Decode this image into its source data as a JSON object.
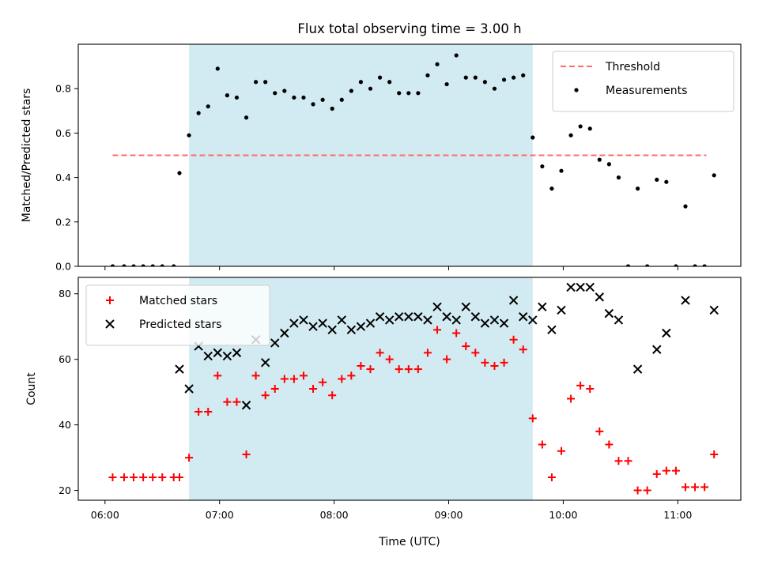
{
  "figure": {
    "title": "Flux total observing time = 3.00 h",
    "xlabel": "Time (UTC)"
  },
  "chart_data": [
    {
      "type": "scatter",
      "ylabel": "Matched/Predicted stars",
      "ylim": [
        0,
        1
      ],
      "yticks": [
        "0.0",
        "0.2",
        "0.4",
        "0.6",
        "0.8"
      ],
      "ytick_values": [
        0,
        0.2,
        0.4,
        0.6,
        0.8
      ],
      "xlim": [
        "05:46",
        "11:33"
      ],
      "xticks": [
        "06:00",
        "07:00",
        "08:00",
        "09:00",
        "10:00",
        "11:00"
      ],
      "shaded_span": {
        "start": "06:44",
        "end": "09:44",
        "color": "#add8e6"
      },
      "legend": {
        "placement": "upper right",
        "entries": [
          "Threshold",
          "Measurements"
        ]
      },
      "series": [
        {
          "name": "Threshold",
          "style": "dashed-line",
          "color": "#ff6b6b",
          "x": [
            "06:04",
            "11:15"
          ],
          "y": [
            0.5,
            0.5
          ]
        },
        {
          "name": "Measurements",
          "style": "dot",
          "color": "#000000",
          "points": [
            [
              "06:04",
              0
            ],
            [
              "06:10",
              0
            ],
            [
              "06:15",
              0
            ],
            [
              "06:20",
              0
            ],
            [
              "06:25",
              0
            ],
            [
              "06:30",
              0
            ],
            [
              "06:36",
              0
            ],
            [
              "06:39",
              0.42
            ],
            [
              "06:44",
              0.59
            ],
            [
              "06:49",
              0.69
            ],
            [
              "06:54",
              0.72
            ],
            [
              "06:59",
              0.89
            ],
            [
              "07:04",
              0.77
            ],
            [
              "07:09",
              0.76
            ],
            [
              "07:14",
              0.67
            ],
            [
              "07:19",
              0.83
            ],
            [
              "07:24",
              0.83
            ],
            [
              "07:29",
              0.78
            ],
            [
              "07:34",
              0.79
            ],
            [
              "07:39",
              0.76
            ],
            [
              "07:44",
              0.76
            ],
            [
              "07:49",
              0.73
            ],
            [
              "07:54",
              0.75
            ],
            [
              "07:59",
              0.71
            ],
            [
              "08:04",
              0.75
            ],
            [
              "08:09",
              0.79
            ],
            [
              "08:14",
              0.83
            ],
            [
              "08:19",
              0.8
            ],
            [
              "08:24",
              0.85
            ],
            [
              "08:29",
              0.83
            ],
            [
              "08:34",
              0.78
            ],
            [
              "08:39",
              0.78
            ],
            [
              "08:44",
              0.78
            ],
            [
              "08:49",
              0.86
            ],
            [
              "08:54",
              0.91
            ],
            [
              "08:59",
              0.82
            ],
            [
              "09:04",
              0.95
            ],
            [
              "09:09",
              0.85
            ],
            [
              "09:14",
              0.85
            ],
            [
              "09:19",
              0.83
            ],
            [
              "09:24",
              0.8
            ],
            [
              "09:29",
              0.84
            ],
            [
              "09:34",
              0.85
            ],
            [
              "09:39",
              0.86
            ],
            [
              "09:44",
              0.58
            ],
            [
              "09:49",
              0.45
            ],
            [
              "09:54",
              0.35
            ],
            [
              "09:59",
              0.43
            ],
            [
              "10:04",
              0.59
            ],
            [
              "10:09",
              0.63
            ],
            [
              "10:14",
              0.62
            ],
            [
              "10:19",
              0.48
            ],
            [
              "10:24",
              0.46
            ],
            [
              "10:29",
              0.4
            ],
            [
              "10:34",
              0
            ],
            [
              "10:39",
              0.35
            ],
            [
              "10:44",
              0
            ],
            [
              "10:49",
              0.39
            ],
            [
              "10:54",
              0.38
            ],
            [
              "10:59",
              0
            ],
            [
              "11:04",
              0.27
            ],
            [
              "11:09",
              0
            ],
            [
              "11:14",
              0
            ],
            [
              "11:19",
              0.41
            ]
          ]
        }
      ]
    },
    {
      "type": "scatter",
      "ylabel": "Count",
      "ylim": [
        17,
        85
      ],
      "yticks": [
        "20",
        "40",
        "60",
        "80"
      ],
      "ytick_values": [
        20,
        40,
        60,
        80
      ],
      "xlim": [
        "05:46",
        "11:33"
      ],
      "xticks": [
        "06:00",
        "07:00",
        "08:00",
        "09:00",
        "10:00",
        "11:00"
      ],
      "shaded_span": {
        "start": "06:44",
        "end": "09:44",
        "color": "#add8e6"
      },
      "legend": {
        "placement": "upper left",
        "entries": [
          "Matched stars",
          "Predicted stars"
        ]
      },
      "series": [
        {
          "name": "Matched stars",
          "marker": "plus",
          "color": "#ff0000",
          "points": [
            [
              "06:04",
              24
            ],
            [
              "06:10",
              24
            ],
            [
              "06:15",
              24
            ],
            [
              "06:20",
              24
            ],
            [
              "06:25",
              24
            ],
            [
              "06:30",
              24
            ],
            [
              "06:36",
              24
            ],
            [
              "06:39",
              24
            ],
            [
              "06:44",
              30
            ],
            [
              "06:49",
              44
            ],
            [
              "06:54",
              44
            ],
            [
              "06:59",
              55
            ],
            [
              "07:04",
              47
            ],
            [
              "07:09",
              47
            ],
            [
              "07:14",
              31
            ],
            [
              "07:19",
              55
            ],
            [
              "07:24",
              49
            ],
            [
              "07:29",
              51
            ],
            [
              "07:34",
              54
            ],
            [
              "07:39",
              54
            ],
            [
              "07:44",
              55
            ],
            [
              "07:49",
              51
            ],
            [
              "07:54",
              53
            ],
            [
              "07:59",
              49
            ],
            [
              "08:04",
              54
            ],
            [
              "08:09",
              55
            ],
            [
              "08:14",
              58
            ],
            [
              "08:19",
              57
            ],
            [
              "08:24",
              62
            ],
            [
              "08:29",
              60
            ],
            [
              "08:34",
              57
            ],
            [
              "08:39",
              57
            ],
            [
              "08:44",
              57
            ],
            [
              "08:49",
              62
            ],
            [
              "08:54",
              69
            ],
            [
              "08:59",
              60
            ],
            [
              "09:04",
              68
            ],
            [
              "09:09",
              64
            ],
            [
              "09:14",
              62
            ],
            [
              "09:19",
              59
            ],
            [
              "09:24",
              58
            ],
            [
              "09:29",
              59
            ],
            [
              "09:34",
              66
            ],
            [
              "09:39",
              63
            ],
            [
              "09:44",
              42
            ],
            [
              "09:49",
              34
            ],
            [
              "09:54",
              24
            ],
            [
              "09:59",
              32
            ],
            [
              "10:04",
              48
            ],
            [
              "10:09",
              52
            ],
            [
              "10:14",
              51
            ],
            [
              "10:19",
              38
            ],
            [
              "10:24",
              34
            ],
            [
              "10:29",
              29
            ],
            [
              "10:34",
              29
            ],
            [
              "10:39",
              20
            ],
            [
              "10:44",
              20
            ],
            [
              "10:49",
              25
            ],
            [
              "10:54",
              26
            ],
            [
              "10:59",
              26
            ],
            [
              "11:04",
              21
            ],
            [
              "11:09",
              21
            ],
            [
              "11:14",
              21
            ],
            [
              "11:19",
              31
            ]
          ]
        },
        {
          "name": "Predicted stars",
          "marker": "x",
          "color": "#000000",
          "points": [
            [
              "06:39",
              57
            ],
            [
              "06:44",
              51
            ],
            [
              "06:49",
              64
            ],
            [
              "06:54",
              61
            ],
            [
              "06:59",
              62
            ],
            [
              "07:04",
              61
            ],
            [
              "07:09",
              62
            ],
            [
              "07:14",
              46
            ],
            [
              "07:19",
              66
            ],
            [
              "07:24",
              59
            ],
            [
              "07:29",
              65
            ],
            [
              "07:34",
              68
            ],
            [
              "07:39",
              71
            ],
            [
              "07:44",
              72
            ],
            [
              "07:49",
              70
            ],
            [
              "07:54",
              71
            ],
            [
              "07:59",
              69
            ],
            [
              "08:04",
              72
            ],
            [
              "08:09",
              69
            ],
            [
              "08:14",
              70
            ],
            [
              "08:19",
              71
            ],
            [
              "08:24",
              73
            ],
            [
              "08:29",
              72
            ],
            [
              "08:34",
              73
            ],
            [
              "08:39",
              73
            ],
            [
              "08:44",
              73
            ],
            [
              "08:49",
              72
            ],
            [
              "08:54",
              76
            ],
            [
              "08:59",
              73
            ],
            [
              "09:04",
              72
            ],
            [
              "09:09",
              76
            ],
            [
              "09:14",
              73
            ],
            [
              "09:19",
              71
            ],
            [
              "09:24",
              72
            ],
            [
              "09:29",
              71
            ],
            [
              "09:34",
              78
            ],
            [
              "09:39",
              73
            ],
            [
              "09:44",
              72
            ],
            [
              "09:49",
              76
            ],
            [
              "09:54",
              69
            ],
            [
              "09:59",
              75
            ],
            [
              "10:04",
              82
            ],
            [
              "10:09",
              82
            ],
            [
              "10:14",
              82
            ],
            [
              "10:19",
              79
            ],
            [
              "10:24",
              74
            ],
            [
              "10:29",
              72
            ],
            [
              "10:39",
              57
            ],
            [
              "10:49",
              63
            ],
            [
              "10:54",
              68
            ],
            [
              "11:04",
              78
            ],
            [
              "11:19",
              75
            ]
          ]
        }
      ]
    }
  ]
}
